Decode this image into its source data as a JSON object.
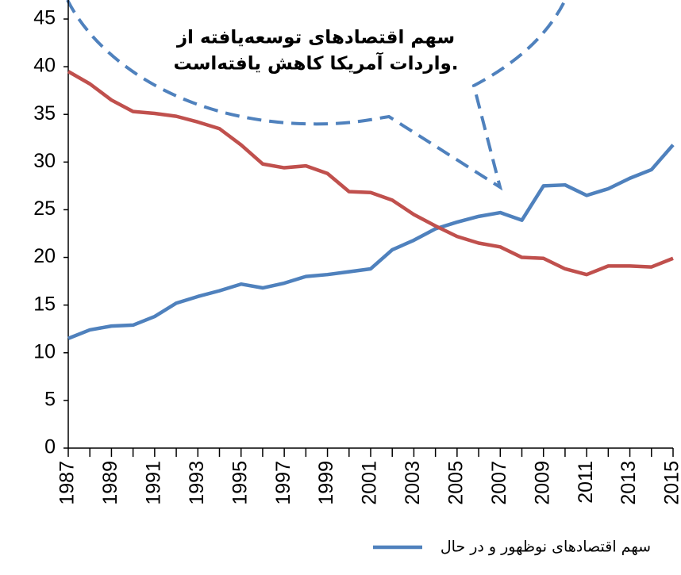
{
  "chart_data": {
    "type": "line",
    "categories": [
      1987,
      null,
      1989,
      null,
      1991,
      null,
      1993,
      null,
      1995,
      null,
      1997,
      null,
      1999,
      null,
      2001,
      null,
      2003,
      null,
      2005,
      null,
      2007,
      null,
      2009,
      null,
      2011,
      null,
      2013,
      null,
      2015
    ],
    "series": [
      {
        "name": "سهم اقتصادهای نوظهور و در حال",
        "color": "#4f81bd",
        "values": [
          11.5,
          12.4,
          12.8,
          12.9,
          13.8,
          15.2,
          15.9,
          16.5,
          17.2,
          16.8,
          17.3,
          18.0,
          18.2,
          18.5,
          18.8,
          20.8,
          21.8,
          23.0,
          23.7,
          24.3,
          24.7,
          23.9,
          27.5,
          27.6,
          26.5,
          27.2,
          28.3,
          29.2,
          31.8
        ]
      },
      {
        "name": null,
        "color": "#c0504d",
        "values": [
          39.5,
          38.2,
          36.5,
          35.3,
          35.1,
          34.8,
          34.2,
          33.5,
          31.8,
          29.8,
          29.4,
          29.6,
          28.8,
          26.9,
          26.8,
          26.0,
          24.5,
          23.3,
          22.2,
          21.5,
          21.1,
          20.0,
          19.9,
          18.8,
          18.2,
          19.1,
          19.1,
          19.0,
          19.9
        ]
      }
    ],
    "ylim": [
      0,
      45
    ],
    "yticks": [
      0,
      5,
      10,
      15,
      20,
      25,
      30,
      35,
      40,
      45
    ],
    "annotations": [
      "سهم اقتصادهای  توسعه‌یافته از",
      "واردات آمریکا کاهش یافته‌است."
    ],
    "legend": "bottom"
  }
}
